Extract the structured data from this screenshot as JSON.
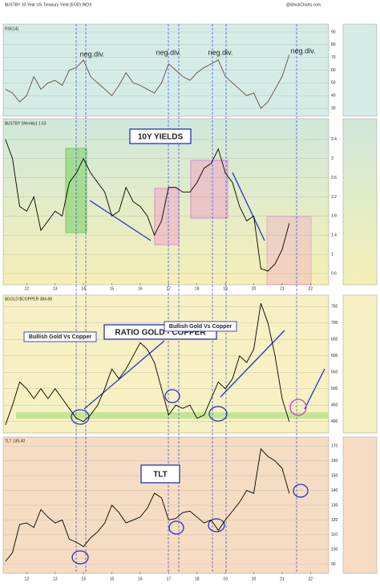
{
  "header": {
    "symbol": "$USTBY 10-Year US Treasury Yield (EOD) INDX",
    "source": "@StockCharts.com"
  },
  "chart_data": [
    {
      "type": "line",
      "label": "RSI(14)",
      "annotations": [
        "neg.div.",
        "neg.div.",
        "neg.div.",
        "neg.div."
      ],
      "color": "#6a4a3a",
      "x": [
        2011.25,
        2011.5,
        2011.75,
        2012,
        2012.25,
        2012.5,
        2012.75,
        2013,
        2013.25,
        2013.5,
        2013.75,
        2014,
        2014.25,
        2014.5,
        2014.75,
        2015,
        2015.25,
        2015.5,
        2015.75,
        2016,
        2016.25,
        2016.5,
        2016.75,
        2017,
        2017.25,
        2017.5,
        2017.75,
        2018,
        2018.25,
        2018.5,
        2018.75,
        2019,
        2019.25,
        2019.5,
        2019.75,
        2020,
        2020.25,
        2020.5,
        2020.75,
        2021,
        2021.25
      ],
      "values": [
        45,
        42,
        35,
        40,
        55,
        45,
        50,
        52,
        48,
        60,
        62,
        68,
        55,
        50,
        45,
        40,
        48,
        58,
        50,
        48,
        45,
        42,
        50,
        65,
        60,
        55,
        52,
        58,
        62,
        65,
        68,
        55,
        50,
        45,
        40,
        42,
        30,
        35,
        45,
        55,
        72
      ],
      "ylim": [
        25,
        95
      ],
      "yticks": [
        30,
        40,
        50,
        60,
        70,
        80,
        90
      ]
    },
    {
      "type": "line",
      "label": "$USTBY (Weekly) 1.63",
      "title": "10Y YIELDS",
      "color": "#000000",
      "x": [
        2011.25,
        2011.5,
        2011.75,
        2012,
        2012.25,
        2012.5,
        2012.75,
        2013,
        2013.25,
        2013.5,
        2013.75,
        2014,
        2014.25,
        2014.5,
        2014.75,
        2015,
        2015.25,
        2015.5,
        2015.75,
        2016,
        2016.25,
        2016.5,
        2016.75,
        2017,
        2017.25,
        2017.5,
        2017.75,
        2018,
        2018.25,
        2018.5,
        2018.75,
        2019,
        2019.25,
        2019.5,
        2019.75,
        2020,
        2020.25,
        2020.5,
        2020.75,
        2021,
        2021.25
      ],
      "values": [
        3.4,
        3.0,
        2.0,
        1.9,
        2.2,
        1.5,
        1.7,
        1.9,
        1.8,
        2.5,
        2.7,
        3.0,
        2.7,
        2.5,
        2.3,
        1.8,
        1.9,
        2.4,
        2.1,
        2.0,
        1.8,
        1.4,
        1.7,
        2.4,
        2.4,
        2.3,
        2.3,
        2.5,
        2.8,
        2.9,
        3.2,
        2.7,
        2.5,
        2.0,
        1.7,
        1.8,
        0.7,
        0.65,
        0.8,
        1.1,
        1.65
      ],
      "ylim": [
        0.4,
        3.8
      ],
      "yticks": [
        0.6,
        1.0,
        1.4,
        1.8,
        2.2,
        2.6,
        3.0,
        3.4
      ],
      "xlim": [
        2011.2,
        2022.5
      ],
      "xticks": [
        {
          "value": 2012,
          "label": "12"
        },
        {
          "value": 2013,
          "label": "13"
        },
        {
          "value": 2014,
          "label": "14"
        },
        {
          "value": 2015,
          "label": "15"
        },
        {
          "value": 2016,
          "label": "16"
        },
        {
          "value": 2017,
          "label": "17"
        },
        {
          "value": 2018,
          "label": "18"
        },
        {
          "value": 2019,
          "label": "19"
        },
        {
          "value": 2020,
          "label": "20"
        },
        {
          "value": 2021,
          "label": "21"
        },
        {
          "value": 2022,
          "label": "22"
        }
      ]
    },
    {
      "type": "line",
      "label": "$GOLD:$COPPER 384.88",
      "title": "RATIO GOLD - COPPER",
      "annotations": [
        "Bullish Gold Vs Copper",
        "Bullish Gold Vs Copper"
      ],
      "color": "#000000",
      "x": [
        2011.25,
        2011.5,
        2011.75,
        2012,
        2012.25,
        2012.5,
        2012.75,
        2013,
        2013.25,
        2013.5,
        2013.75,
        2014,
        2014.25,
        2014.5,
        2014.75,
        2015,
        2015.25,
        2015.5,
        2015.75,
        2016,
        2016.25,
        2016.5,
        2016.75,
        2017,
        2017.25,
        2017.5,
        2017.75,
        2018,
        2018.25,
        2018.5,
        2018.75,
        2019,
        2019.25,
        2019.5,
        2019.75,
        2020,
        2020.25,
        2020.5,
        2020.75,
        2021,
        2021.25
      ],
      "values": [
        390,
        450,
        520,
        500,
        470,
        500,
        470,
        500,
        470,
        440,
        410,
        400,
        420,
        450,
        500,
        560,
        530,
        560,
        600,
        640,
        620,
        580,
        500,
        420,
        450,
        440,
        450,
        410,
        420,
        470,
        520,
        500,
        530,
        600,
        580,
        620,
        760,
        700,
        600,
        470,
        400
      ],
      "ylim": [
        370,
        780
      ],
      "yticks": [
        400,
        450,
        500,
        550,
        600,
        650,
        700,
        750
      ]
    },
    {
      "type": "line",
      "label": "TLT 135.40",
      "title": "TLT",
      "color": "#000000",
      "x": [
        2011.25,
        2011.5,
        2011.75,
        2012,
        2012.25,
        2012.5,
        2012.75,
        2013,
        2013.25,
        2013.5,
        2013.75,
        2014,
        2014.25,
        2014.5,
        2014.75,
        2015,
        2015.25,
        2015.5,
        2015.75,
        2016,
        2016.25,
        2016.5,
        2016.75,
        2017,
        2017.25,
        2017.5,
        2017.75,
        2018,
        2018.25,
        2018.5,
        2018.75,
        2019,
        2019.25,
        2019.5,
        2019.75,
        2020,
        2020.25,
        2020.5,
        2020.75,
        2021,
        2021.25
      ],
      "values": [
        92,
        98,
        117,
        118,
        115,
        127,
        122,
        118,
        120,
        107,
        105,
        102,
        108,
        112,
        118,
        130,
        125,
        118,
        120,
        122,
        128,
        138,
        135,
        120,
        121,
        125,
        126,
        122,
        118,
        120,
        113,
        120,
        126,
        132,
        140,
        138,
        168,
        163,
        160,
        155,
        138
      ],
      "ylim": [
        85,
        175
      ],
      "yticks": [
        90,
        100,
        110,
        120,
        130,
        140,
        150,
        160,
        170
      ],
      "xlim": [
        2011.2,
        2022.5
      ],
      "xticks": [
        {
          "value": 2012,
          "label": "12"
        },
        {
          "value": 2013,
          "label": "13"
        },
        {
          "value": 2014,
          "label": "14"
        },
        {
          "value": 2015,
          "label": "15"
        },
        {
          "value": 2016,
          "label": "16"
        },
        {
          "value": 2017,
          "label": "17"
        },
        {
          "value": 2018,
          "label": "18"
        },
        {
          "value": 2019,
          "label": "19"
        },
        {
          "value": 2020,
          "label": "20"
        },
        {
          "value": 2021,
          "label": "21"
        },
        {
          "value": 2022,
          "label": "22"
        }
      ]
    }
  ]
}
